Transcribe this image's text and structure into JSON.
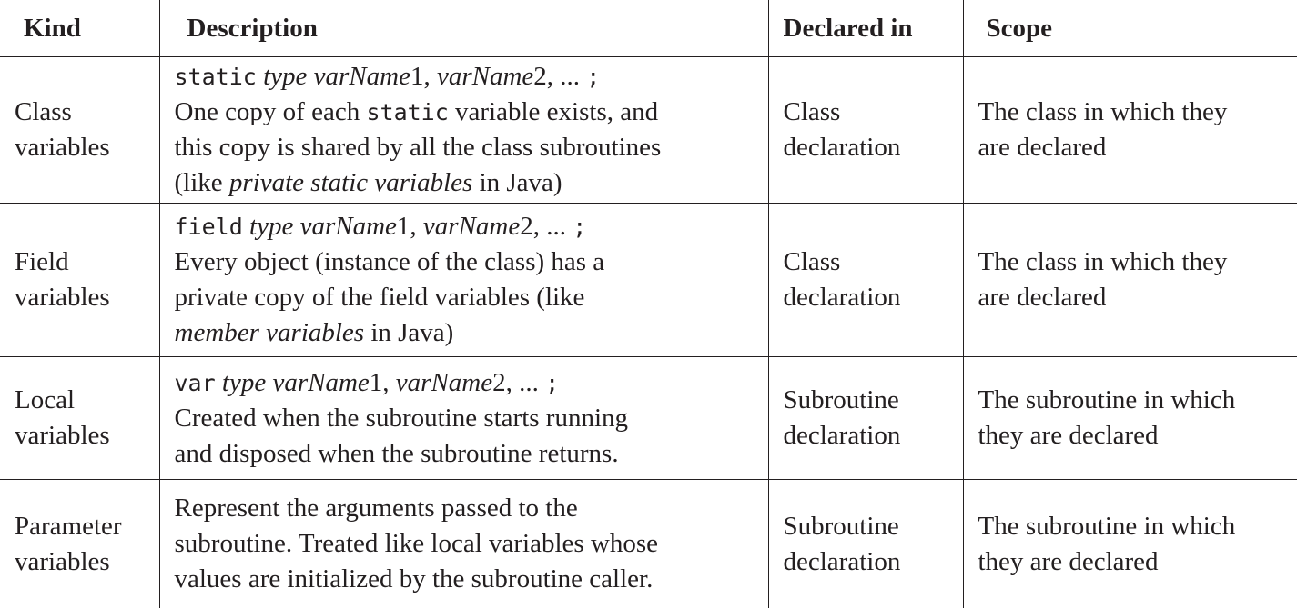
{
  "table": {
    "headers": {
      "kind": "Kind",
      "description": "Description",
      "declared_in": "Declared in",
      "scope": "Scope"
    },
    "rows": [
      {
        "kind": [
          "Class",
          "variables"
        ],
        "syntax": {
          "keyword": "static",
          "type": "type",
          "name1": "varName",
          "num1": "1, ",
          "name2": "varName",
          "num2": "2, ... ",
          "semicolon": ";"
        },
        "description_lines": [
          [
            "One copy of each ",
            "static",
            " variable exists, and"
          ],
          "this copy is shared by all the class subroutines",
          [
            "(like ",
            "private static variables",
            " in Java)"
          ]
        ],
        "declared_in": [
          "Class",
          "declaration"
        ],
        "scope": [
          "The class in which they",
          "are declared"
        ]
      },
      {
        "kind": [
          "Field",
          "variables"
        ],
        "syntax": {
          "keyword": "field",
          "type": " type",
          "name1": "varName",
          "num1": "1, ",
          "name2": "varName",
          "num2": "2, ... ",
          "semicolon": ";"
        },
        "description_lines": [
          "Every object (instance of the class) has a",
          "private copy of the field variables (like",
          [
            "member variables",
            " in Java)"
          ]
        ],
        "declared_in": [
          "Class",
          "declaration"
        ],
        "scope": [
          "The class in which they",
          "are declared"
        ]
      },
      {
        "kind": [
          "Local",
          "variables"
        ],
        "syntax": {
          "keyword": "var",
          "type": " type",
          "name1": "varName",
          "num1": "1, ",
          "name2": "varName",
          "num2": "2, ... ",
          "semicolon": ";"
        },
        "description_lines": [
          "Created when the subroutine starts running",
          "and disposed when the subroutine returns."
        ],
        "declared_in": [
          "Subroutine",
          "declaration"
        ],
        "scope": [
          "The subroutine in which",
          "they are declared"
        ]
      },
      {
        "kind": [
          "Parameter",
          "variables"
        ],
        "description_lines": [
          "Represent the arguments passed to the",
          "subroutine. Treated like local variables whose",
          "values are initialized by the subroutine caller."
        ],
        "declared_in": [
          "Subroutine",
          "declaration"
        ],
        "scope": [
          "The subroutine in which",
          "they are declared"
        ]
      }
    ]
  }
}
